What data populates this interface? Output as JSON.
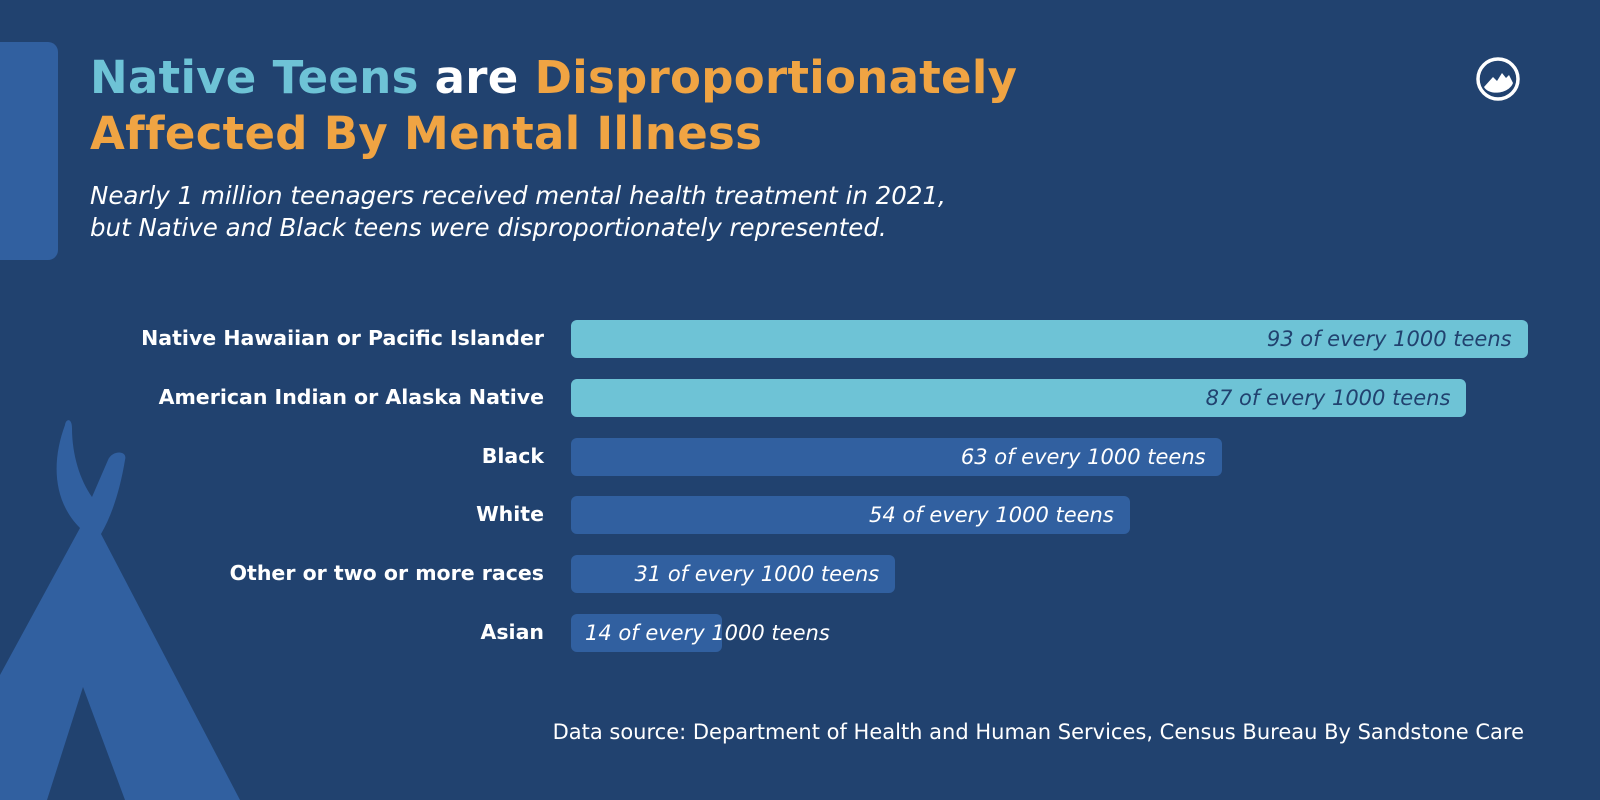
{
  "title": {
    "part1": "Native Teens",
    "part2": "are",
    "part3": "Disproportionately",
    "line2": "Affected By Mental Illness"
  },
  "subtitle": {
    "line1": "Nearly 1 million teenagers received mental health treatment in 2021,",
    "line2": "but Native and Black teens were disproportionately represented."
  },
  "logo": "sandstone-mountain-logo",
  "colors": {
    "background": "#21426f",
    "highlight_bar": "#6ec3d6",
    "bar": "#3160a0",
    "accent": "#f0a443"
  },
  "chart_data": {
    "type": "bar",
    "orientation": "horizontal",
    "categories": [
      "Native Hawaiian or Pacific Islander",
      "American Indian or Alaska Native",
      "Black",
      "White",
      "Other or two or more races",
      "Asian"
    ],
    "values": [
      93,
      87,
      63,
      54,
      31,
      14
    ],
    "value_labels": [
      "93 of every 1000 teens",
      "87 of every 1000 teens",
      "63 of every 1000 teens",
      "54 of every 1000 teens",
      "31 of every 1000 teens",
      "14 of every 1000 teens"
    ],
    "highlighted": [
      true,
      true,
      false,
      false,
      false,
      false
    ],
    "unit": "per 1000 teens"
  },
  "source": "Data source: Department of Health and Human Services, Census Bureau By Sandstone Care"
}
